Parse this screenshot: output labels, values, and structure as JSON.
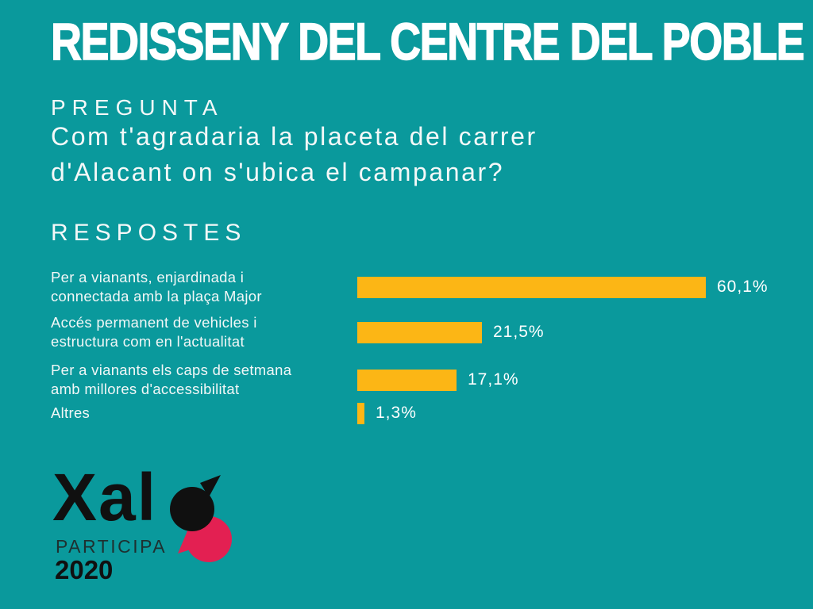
{
  "colors": {
    "background": "#0A999C",
    "bar": "#FCB615",
    "text": "#FFFFFF",
    "logo_black": "#101010",
    "logo_pink": "#E32052",
    "logo_participa": "#1E3030"
  },
  "title": "REDISSENY DEL CENTRE DEL POBLE",
  "question_section": {
    "label": "PREGUNTA",
    "line1": "Com t'agradaria la placeta del carrer",
    "line2": "d'Alacant on s'ubica el campanar?"
  },
  "answers_section": {
    "label": "RESPOSTES"
  },
  "chart_data": {
    "type": "bar",
    "orientation": "horizontal",
    "title": "RESPOSTES",
    "categories": [
      "Per a vianants, enjardinada i connectada amb la plaça Major",
      "Accés permanent de vehicles i estructura com en l'actualitat",
      "Per a vianants els caps de setmana amb millores d'accessibilitat",
      "Altres"
    ],
    "label_lines": [
      [
        "Per a vianants, enjardinada i",
        "connectada amb la plaça Major"
      ],
      [
        "Accés permanent de vehicles i",
        "estructura com en l'actualitat"
      ],
      [
        "Per a vianants els caps de setmana",
        "amb millores d'accessibilitat"
      ],
      [
        "Altres"
      ]
    ],
    "values": [
      60.1,
      21.5,
      17.1,
      1.3
    ],
    "value_labels": [
      "60,1%",
      "21,5%",
      "17,1%",
      "1,3%"
    ],
    "xlim": [
      0,
      65
    ],
    "bar_color": "#FCB615",
    "grid": false,
    "legend": false
  },
  "logo": {
    "wordmark": "Xal",
    "subtitle": "PARTICIPA",
    "year": "2020"
  }
}
